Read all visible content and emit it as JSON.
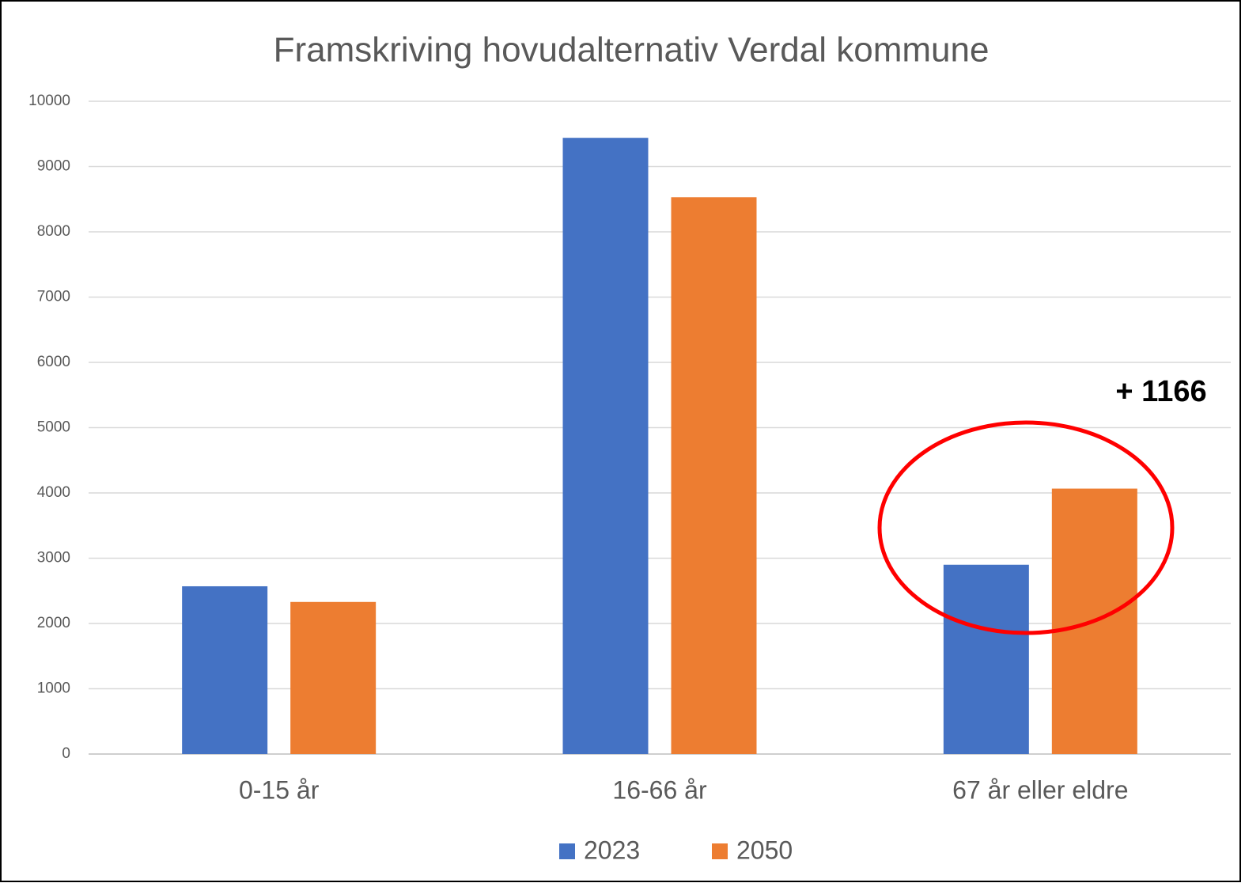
{
  "chart_data": {
    "type": "bar",
    "title": "Framskriving hovudalternativ Verdal kommune",
    "categories": [
      "0-15 år",
      "16-66 år",
      "67 år eller eldre"
    ],
    "series": [
      {
        "name": "2023",
        "color": "#4472c4",
        "values": [
          2570,
          9440,
          2900
        ]
      },
      {
        "name": "2050",
        "color": "#ed7d31",
        "values": [
          2330,
          8530,
          4066
        ]
      }
    ],
    "ylim": [
      0,
      10000
    ],
    "yticks": [
      0,
      1000,
      2000,
      3000,
      4000,
      5000,
      6000,
      7000,
      8000,
      9000,
      10000
    ],
    "grid": true,
    "legend": "bottom",
    "annotation": "+ 1166"
  }
}
